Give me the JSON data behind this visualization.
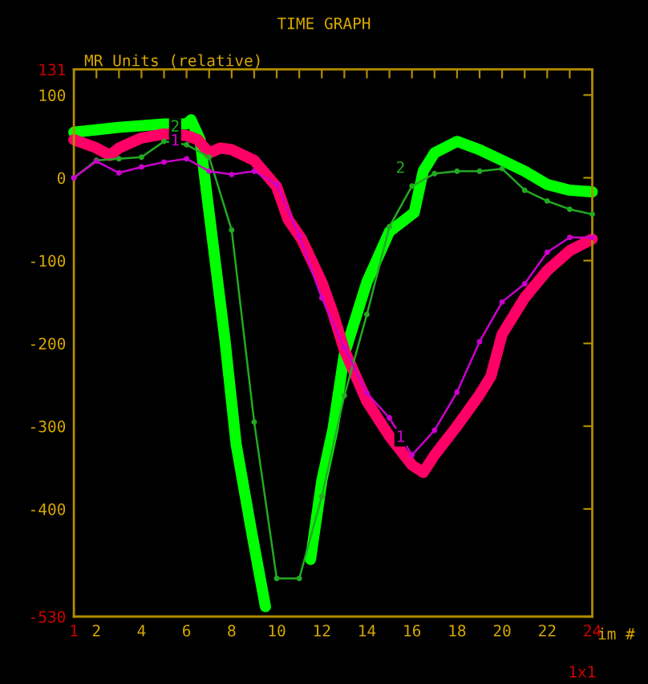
{
  "chart_data": {
    "type": "line",
    "title": "TIME GRAPH",
    "ylabel": "MR Units (relative)",
    "xlabel": "im #",
    "annotations": [
      "1x1"
    ],
    "xlim": [
      1,
      24
    ],
    "ylim": [
      -530,
      131
    ],
    "xticks": [
      1,
      2,
      {
        "value": 3,
        "label": null
      },
      4,
      {
        "value": 5,
        "label": null
      },
      6,
      {
        "value": 7,
        "label": null
      },
      8,
      {
        "value": 9,
        "label": null
      },
      10,
      {
        "value": 11,
        "label": null
      },
      12,
      {
        "value": 13,
        "label": null
      },
      14,
      {
        "value": 15,
        "label": null
      },
      16,
      {
        "value": 17,
        "label": null
      },
      18,
      {
        "value": 19,
        "label": null
      },
      20,
      {
        "value": 21,
        "label": null
      },
      22,
      {
        "value": 23,
        "label": null
      },
      24
    ],
    "yticks": [
      -530,
      -400,
      -300,
      -200,
      -100,
      0,
      100,
      131
    ],
    "grid": false,
    "legend": false,
    "series": [
      {
        "name": "2",
        "color": "#22aa22",
        "marker": "circle",
        "x": [
          1,
          2,
          3,
          4,
          5,
          6,
          7,
          8,
          9,
          10,
          11,
          12,
          13,
          14,
          15,
          16,
          17,
          18,
          19,
          20,
          21,
          22,
          23,
          24
        ],
        "values": [
          0,
          21,
          23,
          25,
          44,
          40,
          25,
          -63,
          -295,
          -484,
          -484,
          -385,
          -263,
          -165,
          -59,
          -10,
          5,
          8,
          8,
          11,
          -15,
          -28,
          -38,
          -44
        ]
      },
      {
        "name": "1",
        "color": "#cc00cc",
        "marker": "circle",
        "x": [
          1,
          2,
          3,
          4,
          5,
          6,
          7,
          8,
          9,
          10,
          11,
          12,
          13,
          14,
          15,
          16,
          17,
          18,
          19,
          20,
          21,
          22,
          23,
          24
        ],
        "values": [
          0,
          20,
          6,
          13,
          19,
          23,
          8,
          4,
          8,
          -8,
          -70,
          -145,
          -205,
          -260,
          -290,
          -335,
          -305,
          -259,
          -198,
          -150,
          -128,
          -90,
          -72,
          -72
        ]
      },
      {
        "color": "#00ff00",
        "marker": "none",
        "type": "line",
        "x": [
          1,
          3,
          5,
          6,
          6.2,
          6.6,
          7,
          7.7,
          8.2,
          8.9,
          9.5,
          10.1,
          11,
          11.5,
          12,
          12.5,
          13,
          14,
          15,
          16.1,
          16.5,
          17,
          18,
          19,
          20,
          21,
          22,
          23,
          24
        ],
        "values": [
          55,
          61,
          65,
          65,
          70,
          46,
          -42,
          -195,
          -322,
          -430,
          -518,
          null,
          null,
          -461,
          -366,
          -303,
          -213,
          -126,
          -65,
          -42,
          8,
          30,
          44,
          34,
          21,
          8,
          -8,
          -15,
          -17
        ]
      },
      {
        "color": "#ff0066",
        "marker": "none",
        "type": "line",
        "x": [
          1,
          2,
          2.6,
          3,
          4,
          5,
          6,
          6.5,
          7,
          7.5,
          8,
          9,
          10,
          10.5,
          11.1,
          12,
          12.5,
          13,
          14,
          15,
          16,
          16.5,
          17,
          18,
          19,
          19.5,
          20,
          21,
          22,
          23,
          24
        ],
        "values": [
          46,
          36,
          27,
          36,
          48,
          53,
          51,
          46,
          30,
          36,
          34,
          21,
          -11,
          -50,
          -74,
          -126,
          -164,
          -208,
          -270,
          -312,
          -347,
          -356,
          -335,
          -300,
          -262,
          -240,
          -189,
          -145,
          -112,
          -88,
          -74
        ]
      }
    ]
  }
}
